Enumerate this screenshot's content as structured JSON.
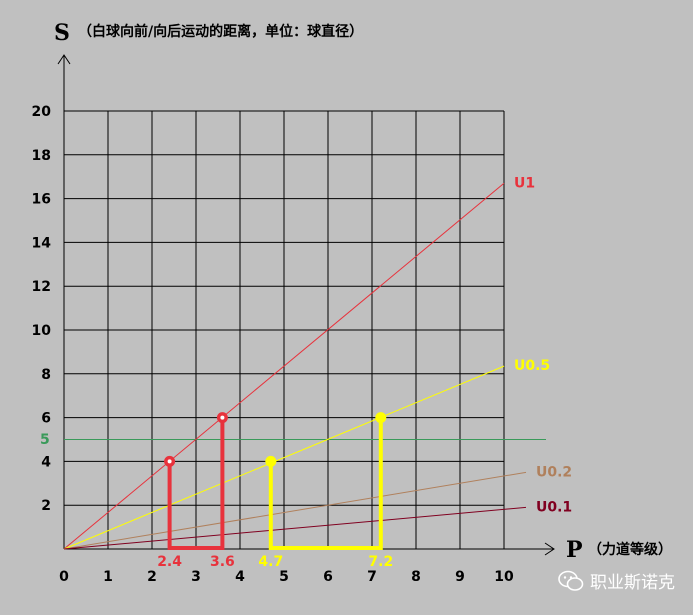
{
  "chart_data": {
    "type": "line",
    "ylabel_symbol": "S",
    "ylabel_desc": "（白球向前/向后运动的距离，单位：球直径）",
    "xlabel_symbol": "P",
    "xlabel_desc": "（力道等级）",
    "xlim": [
      0,
      10
    ],
    "ylim": [
      0,
      20
    ],
    "x_ticks": [
      "0",
      "1",
      "2",
      "3",
      "4",
      "5",
      "6",
      "7",
      "8",
      "9",
      "10"
    ],
    "y_ticks": [
      "2",
      "4",
      "6",
      "8",
      "10",
      "12",
      "14",
      "16",
      "18",
      "20"
    ],
    "series": [
      {
        "name": "U1",
        "color": "#e8323c",
        "points": [
          [
            0,
            0
          ],
          [
            10,
            16.7
          ]
        ]
      },
      {
        "name": "U0.5",
        "color": "#ffff00",
        "points": [
          [
            0,
            0
          ],
          [
            10,
            8.35
          ]
        ]
      },
      {
        "name": "U0.2",
        "color": "#b0805c",
        "points": [
          [
            0,
            0
          ],
          [
            10.5,
            3.5
          ]
        ]
      },
      {
        "name": "U0.1",
        "color": "#800020",
        "points": [
          [
            0,
            0
          ],
          [
            10.5,
            1.9
          ]
        ]
      }
    ],
    "reference_line": {
      "label": "5",
      "y": 5,
      "color": "#3a9a5a"
    },
    "marked_points": [
      {
        "x": 2.4,
        "y": 4,
        "color": "#e8323c"
      },
      {
        "x": 3.6,
        "y": 6,
        "color": "#e8323c"
      },
      {
        "x": 4.7,
        "y": 4,
        "color": "#ffff00"
      },
      {
        "x": 7.2,
        "y": 6,
        "color": "#ffff00"
      }
    ],
    "value_labels": [
      {
        "text": "2.4",
        "x": 2.4,
        "color": "#e8323c"
      },
      {
        "text": "3.6",
        "x": 3.6,
        "color": "#e8323c"
      },
      {
        "text": "4.7",
        "x": 4.7,
        "color": "#ffff00"
      },
      {
        "text": "7.2",
        "x": 7.2,
        "color": "#ffff00"
      }
    ]
  },
  "watermark": {
    "text": "职业斯诺克",
    "icon": "wechat-icon"
  }
}
